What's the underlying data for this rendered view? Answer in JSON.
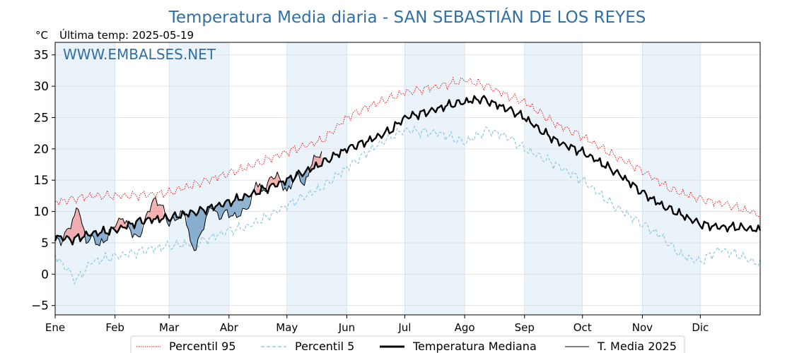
{
  "chart_data": {
    "type": "line",
    "title": "Temperatura Media diaria - SAN SEBASTIÁN DE LOS REYES",
    "unit_label": "°C",
    "last_temp_label": "Última temp: 2025-05-19",
    "watermark": "WWW.EMBALSES.NET",
    "months": [
      "Ene",
      "Feb",
      "Mar",
      "Abr",
      "May",
      "Jun",
      "Jul",
      "Ago",
      "Sep",
      "Oct",
      "Nov",
      "Dic"
    ],
    "month_starts": [
      1,
      32,
      60,
      91,
      121,
      152,
      182,
      213,
      244,
      274,
      305,
      335
    ],
    "xlim": [
      1,
      366
    ],
    "ylim": [
      -6.5,
      37
    ],
    "yticks": [
      -5,
      0,
      5,
      10,
      15,
      20,
      25,
      30,
      35
    ],
    "ytick_labels": [
      "−5",
      "0",
      "5",
      "10",
      "15",
      "20",
      "25",
      "30",
      "35"
    ],
    "grid": true,
    "legend_position": "bottom-center",
    "colors": {
      "title": "#2f6fa5",
      "watermark": "#2f6fa5",
      "p95": "#ff0000",
      "p5": "#8ec9dd",
      "median": "#000000",
      "current": "#000000",
      "above_fill": "#f08080",
      "below_fill": "#4682b4",
      "band": "#eaf3fa"
    },
    "series": [
      {
        "name": "Percentil 95",
        "style": "dotted-red",
        "keypoints": [
          [
            1,
            11.5
          ],
          [
            20,
            12.5
          ],
          [
            40,
            12.5
          ],
          [
            60,
            13
          ],
          [
            80,
            15
          ],
          [
            100,
            17
          ],
          [
            121,
            19.5
          ],
          [
            140,
            21.5
          ],
          [
            152,
            25
          ],
          [
            165,
            27
          ],
          [
            182,
            29
          ],
          [
            200,
            30
          ],
          [
            213,
            31
          ],
          [
            225,
            30
          ],
          [
            235,
            28.5
          ],
          [
            244,
            27.5
          ],
          [
            260,
            24
          ],
          [
            274,
            22
          ],
          [
            290,
            19
          ],
          [
            305,
            16.5
          ],
          [
            320,
            13.5
          ],
          [
            335,
            12
          ],
          [
            350,
            11
          ],
          [
            366,
            9.5
          ]
        ]
      },
      {
        "name": "Percentil 5",
        "style": "dashed-lightblue",
        "keypoints": [
          [
            1,
            3
          ],
          [
            12,
            -1
          ],
          [
            20,
            2
          ],
          [
            35,
            3
          ],
          [
            50,
            4
          ],
          [
            60,
            4.5
          ],
          [
            75,
            5
          ],
          [
            91,
            7
          ],
          [
            100,
            7.5
          ],
          [
            110,
            9
          ],
          [
            121,
            11
          ],
          [
            140,
            14
          ],
          [
            152,
            17
          ],
          [
            165,
            20
          ],
          [
            175,
            22
          ],
          [
            182,
            23
          ],
          [
            200,
            22.5
          ],
          [
            213,
            21
          ],
          [
            225,
            23
          ],
          [
            235,
            22
          ],
          [
            244,
            20
          ],
          [
            260,
            17.5
          ],
          [
            274,
            15
          ],
          [
            290,
            11
          ],
          [
            305,
            8
          ],
          [
            315,
            6
          ],
          [
            325,
            3
          ],
          [
            335,
            2
          ],
          [
            345,
            4
          ],
          [
            355,
            3
          ],
          [
            366,
            1.5
          ]
        ]
      },
      {
        "name": "Temperatura Mediana",
        "style": "thick-black",
        "keypoints": [
          [
            1,
            6
          ],
          [
            10,
            5.5
          ],
          [
            20,
            6.5
          ],
          [
            32,
            7
          ],
          [
            45,
            8.5
          ],
          [
            60,
            9
          ],
          [
            75,
            10
          ],
          [
            91,
            11.5
          ],
          [
            105,
            13
          ],
          [
            121,
            15
          ],
          [
            135,
            17
          ],
          [
            152,
            20
          ],
          [
            165,
            21.5
          ],
          [
            175,
            23
          ],
          [
            182,
            25
          ],
          [
            195,
            26
          ],
          [
            205,
            27
          ],
          [
            213,
            27.5
          ],
          [
            222,
            28
          ],
          [
            230,
            27
          ],
          [
            238,
            26
          ],
          [
            244,
            25
          ],
          [
            252,
            23
          ],
          [
            262,
            21
          ],
          [
            274,
            19.5
          ],
          [
            285,
            17.5
          ],
          [
            295,
            15.5
          ],
          [
            305,
            13
          ],
          [
            315,
            11
          ],
          [
            325,
            9.5
          ],
          [
            335,
            8
          ],
          [
            345,
            7.5
          ],
          [
            355,
            7.5
          ],
          [
            366,
            7
          ]
        ]
      },
      {
        "name": "T. Media 2025",
        "style": "thin-black",
        "end_day": 139,
        "keypoints": [
          [
            1,
            6
          ],
          [
            4,
            5
          ],
          [
            8,
            7.5
          ],
          [
            11,
            9
          ],
          [
            13,
            11
          ],
          [
            15,
            8
          ],
          [
            17,
            5
          ],
          [
            20,
            6
          ],
          [
            24,
            4.5
          ],
          [
            28,
            6
          ],
          [
            32,
            8
          ],
          [
            36,
            9
          ],
          [
            40,
            7
          ],
          [
            44,
            5.5
          ],
          [
            48,
            9
          ],
          [
            52,
            12
          ],
          [
            56,
            11
          ],
          [
            60,
            8
          ],
          [
            64,
            9
          ],
          [
            68,
            10
          ],
          [
            71,
            5
          ],
          [
            74,
            4
          ],
          [
            78,
            8
          ],
          [
            82,
            11
          ],
          [
            86,
            9
          ],
          [
            90,
            10
          ],
          [
            94,
            9
          ],
          [
            98,
            10
          ],
          [
            102,
            11
          ],
          [
            105,
            15
          ],
          [
            108,
            13
          ],
          [
            112,
            15
          ],
          [
            116,
            16
          ],
          [
            119,
            14
          ],
          [
            121,
            13
          ],
          [
            124,
            15
          ],
          [
            127,
            16
          ],
          [
            130,
            14
          ],
          [
            133,
            17
          ],
          [
            136,
            19
          ],
          [
            139,
            19
          ]
        ]
      }
    ]
  }
}
